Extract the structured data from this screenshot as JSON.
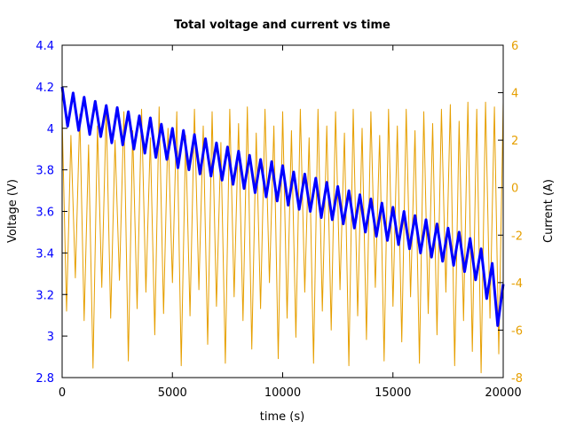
{
  "chart_data": {
    "type": "line",
    "title": "Total voltage and current vs time",
    "xlabel": "time (s)",
    "ylabel_left": "Voltage (V)",
    "ylabel_right": "Current (A)",
    "xlim": [
      0,
      20000
    ],
    "ylim_left": [
      2.8,
      4.4
    ],
    "ylim_right": [
      -8,
      6
    ],
    "xticks": [
      "0",
      "5000",
      "10000",
      "15000",
      "20000"
    ],
    "yticks_left": [
      "2.8",
      "3",
      "3.2",
      "3.4",
      "3.6",
      "3.8",
      "4",
      "4.2",
      "4.4"
    ],
    "yticks_right": [
      "-8",
      "-6",
      "-4",
      "-2",
      "0",
      "2",
      "4",
      "6"
    ],
    "grid": false,
    "colors": {
      "voltage": "#0000ff",
      "current": "#e69f00"
    },
    "series": [
      {
        "axis": "right",
        "color": "#e69f00",
        "points": [
          [
            0,
            3.0
          ],
          [
            200,
            -5.2
          ],
          [
            400,
            2.2
          ],
          [
            600,
            -3.8
          ],
          [
            800,
            3.1
          ],
          [
            1000,
            -5.6
          ],
          [
            1200,
            1.8
          ],
          [
            1400,
            -7.6
          ],
          [
            1600,
            2.6
          ],
          [
            1800,
            -4.2
          ],
          [
            2000,
            3.3
          ],
          [
            2200,
            -5.5
          ],
          [
            2400,
            2.0
          ],
          [
            2600,
            -3.9
          ],
          [
            2800,
            3.2
          ],
          [
            3000,
            -7.3
          ],
          [
            3200,
            2.4
          ],
          [
            3400,
            -5.1
          ],
          [
            3600,
            3.3
          ],
          [
            3800,
            -4.4
          ],
          [
            4000,
            2.1
          ],
          [
            4200,
            -6.2
          ],
          [
            4400,
            3.4
          ],
          [
            4600,
            -5.3
          ],
          [
            4800,
            2.5
          ],
          [
            5000,
            -4.0
          ],
          [
            5200,
            3.2
          ],
          [
            5400,
            -7.5
          ],
          [
            5600,
            2.2
          ],
          [
            5800,
            -5.4
          ],
          [
            6000,
            3.3
          ],
          [
            6200,
            -4.3
          ],
          [
            6400,
            2.6
          ],
          [
            6600,
            -6.6
          ],
          [
            6800,
            3.2
          ],
          [
            7000,
            -5.0
          ],
          [
            7200,
            1.9
          ],
          [
            7400,
            -7.4
          ],
          [
            7600,
            3.3
          ],
          [
            7800,
            -4.6
          ],
          [
            8000,
            2.7
          ],
          [
            8200,
            -5.6
          ],
          [
            8400,
            3.4
          ],
          [
            8600,
            -6.8
          ],
          [
            8800,
            2.3
          ],
          [
            9000,
            -5.1
          ],
          [
            9200,
            3.3
          ],
          [
            9400,
            -4.0
          ],
          [
            9600,
            2.6
          ],
          [
            9800,
            -7.2
          ],
          [
            10000,
            3.2
          ],
          [
            10200,
            -5.5
          ],
          [
            10400,
            2.4
          ],
          [
            10600,
            -6.3
          ],
          [
            10800,
            3.3
          ],
          [
            11000,
            -4.4
          ],
          [
            11200,
            2.1
          ],
          [
            11400,
            -7.4
          ],
          [
            11600,
            3.3
          ],
          [
            11800,
            -5.2
          ],
          [
            12000,
            2.6
          ],
          [
            12200,
            -6.0
          ],
          [
            12400,
            3.2
          ],
          [
            12600,
            -4.3
          ],
          [
            12800,
            2.3
          ],
          [
            13000,
            -7.5
          ],
          [
            13200,
            3.3
          ],
          [
            13400,
            -5.4
          ],
          [
            13600,
            2.5
          ],
          [
            13800,
            -6.4
          ],
          [
            14000,
            3.2
          ],
          [
            14200,
            -4.2
          ],
          [
            14400,
            2.2
          ],
          [
            14600,
            -7.3
          ],
          [
            14800,
            3.3
          ],
          [
            15000,
            -5.0
          ],
          [
            15200,
            2.6
          ],
          [
            15400,
            -6.5
          ],
          [
            15600,
            3.3
          ],
          [
            15800,
            -4.6
          ],
          [
            16000,
            2.4
          ],
          [
            16200,
            -7.4
          ],
          [
            16400,
            3.2
          ],
          [
            16600,
            -5.3
          ],
          [
            16800,
            2.7
          ],
          [
            17000,
            -6.2
          ],
          [
            17200,
            3.3
          ],
          [
            17400,
            -4.4
          ],
          [
            17600,
            3.5
          ],
          [
            17800,
            -7.5
          ],
          [
            18000,
            2.8
          ],
          [
            18200,
            -5.6
          ],
          [
            18400,
            3.6
          ],
          [
            18600,
            -6.9
          ],
          [
            18800,
            3.3
          ],
          [
            19000,
            -7.8
          ],
          [
            19200,
            3.6
          ],
          [
            19400,
            -5.5
          ],
          [
            19600,
            3.4
          ],
          [
            19800,
            -7.0
          ],
          [
            20000,
            3.6
          ]
        ]
      },
      {
        "axis": "left",
        "color": "#0000ff",
        "points": [
          [
            0,
            4.2
          ],
          [
            250,
            4.01
          ],
          [
            500,
            4.17
          ],
          [
            750,
            3.99
          ],
          [
            1000,
            4.15
          ],
          [
            1250,
            3.97
          ],
          [
            1500,
            4.13
          ],
          [
            1750,
            3.96
          ],
          [
            2000,
            4.11
          ],
          [
            2250,
            3.93
          ],
          [
            2500,
            4.1
          ],
          [
            2750,
            3.92
          ],
          [
            3000,
            4.08
          ],
          [
            3250,
            3.9
          ],
          [
            3500,
            4.06
          ],
          [
            3750,
            3.88
          ],
          [
            4000,
            4.05
          ],
          [
            4250,
            3.86
          ],
          [
            4500,
            4.02
          ],
          [
            4750,
            3.85
          ],
          [
            5000,
            4.0
          ],
          [
            5250,
            3.81
          ],
          [
            5500,
            3.99
          ],
          [
            5750,
            3.8
          ],
          [
            6000,
            3.97
          ],
          [
            6250,
            3.78
          ],
          [
            6500,
            3.95
          ],
          [
            6750,
            3.77
          ],
          [
            7000,
            3.93
          ],
          [
            7250,
            3.75
          ],
          [
            7500,
            3.91
          ],
          [
            7750,
            3.73
          ],
          [
            8000,
            3.89
          ],
          [
            8250,
            3.71
          ],
          [
            8500,
            3.87
          ],
          [
            8750,
            3.69
          ],
          [
            9000,
            3.85
          ],
          [
            9250,
            3.67
          ],
          [
            9500,
            3.84
          ],
          [
            9750,
            3.65
          ],
          [
            10000,
            3.82
          ],
          [
            10250,
            3.63
          ],
          [
            10500,
            3.79
          ],
          [
            10750,
            3.61
          ],
          [
            11000,
            3.78
          ],
          [
            11250,
            3.6
          ],
          [
            11500,
            3.76
          ],
          [
            11750,
            3.57
          ],
          [
            12000,
            3.74
          ],
          [
            12250,
            3.56
          ],
          [
            12500,
            3.72
          ],
          [
            12750,
            3.54
          ],
          [
            13000,
            3.7
          ],
          [
            13250,
            3.52
          ],
          [
            13500,
            3.68
          ],
          [
            13750,
            3.5
          ],
          [
            14000,
            3.66
          ],
          [
            14250,
            3.48
          ],
          [
            14500,
            3.64
          ],
          [
            14750,
            3.46
          ],
          [
            15000,
            3.62
          ],
          [
            15250,
            3.44
          ],
          [
            15500,
            3.6
          ],
          [
            15750,
            3.42
          ],
          [
            16000,
            3.58
          ],
          [
            16250,
            3.4
          ],
          [
            16500,
            3.56
          ],
          [
            16750,
            3.38
          ],
          [
            17000,
            3.54
          ],
          [
            17250,
            3.36
          ],
          [
            17500,
            3.52
          ],
          [
            17750,
            3.34
          ],
          [
            18000,
            3.5
          ],
          [
            18250,
            3.31
          ],
          [
            18500,
            3.47
          ],
          [
            18750,
            3.27
          ],
          [
            19000,
            3.42
          ],
          [
            19250,
            3.18
          ],
          [
            19500,
            3.35
          ],
          [
            19750,
            3.05
          ],
          [
            20000,
            3.25
          ]
        ]
      }
    ]
  }
}
